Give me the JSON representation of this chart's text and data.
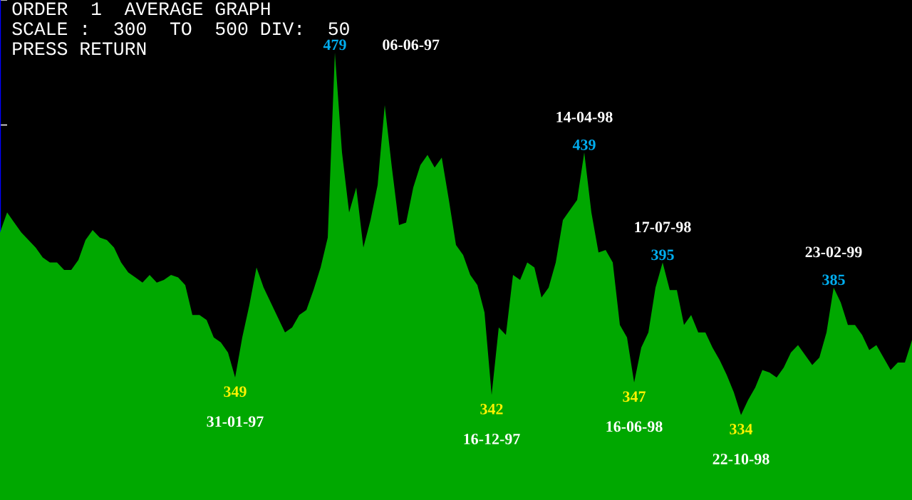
{
  "chart_data": {
    "type": "area",
    "title": "ORDER  1  AVERAGE GRAPH",
    "subtitle": "SCALE :  300  TO  500 DIV:  50",
    "annotations": [
      "PRESS RETURN",
      "31-01-97",
      "06-06-97",
      "16-12-97",
      "14-04-98",
      "16-06-98",
      "17-07-98",
      "22-10-98",
      "23-02-99"
    ],
    "categories": [
      null,
      null,
      null,
      null,
      null,
      null,
      null,
      null,
      null,
      null,
      null,
      null,
      null,
      null,
      null,
      null,
      null,
      null,
      null,
      null,
      null,
      null,
      null,
      null,
      null,
      null,
      null,
      null,
      null,
      null,
      null,
      null,
      null,
      null,
      null,
      null,
      null,
      null,
      null,
      null,
      null,
      null,
      null,
      null,
      null,
      null,
      null,
      null,
      null,
      null,
      null,
      null,
      null,
      null,
      null,
      null,
      null,
      null,
      null,
      null,
      null,
      null,
      null,
      null,
      null,
      null,
      null,
      null,
      null,
      null,
      null,
      null,
      null,
      null,
      null,
      null,
      null,
      null,
      null,
      null,
      null,
      null,
      null,
      null,
      null,
      null,
      null,
      null,
      null,
      null,
      null,
      null,
      null,
      null,
      null,
      null,
      null,
      null,
      null,
      null,
      null,
      null,
      null,
      null,
      null,
      null,
      null,
      null,
      null,
      null,
      null,
      null,
      null,
      null,
      null,
      null,
      null,
      null,
      null,
      null,
      null,
      null,
      null,
      null,
      null,
      null,
      null,
      null,
      null
    ],
    "values": [
      407,
      415,
      411,
      407,
      404,
      401,
      397,
      395,
      395,
      392,
      392,
      396,
      404,
      408,
      405,
      404,
      401,
      395,
      391,
      389,
      387,
      390,
      387,
      388,
      390,
      389,
      386,
      374,
      374,
      372,
      365,
      363,
      359,
      349,
      365,
      378,
      393,
      385,
      379,
      373,
      367,
      369,
      374,
      376,
      384,
      393,
      405,
      479,
      439,
      415,
      425,
      401,
      412,
      426,
      458,
      433,
      410,
      411,
      425,
      434,
      438,
      433,
      437,
      420,
      402,
      398,
      390,
      386,
      375,
      342,
      369,
      366,
      390,
      388,
      395,
      393,
      381,
      385,
      395,
      412,
      416,
      420,
      439,
      415,
      399,
      400,
      395,
      370,
      365,
      347,
      361,
      367,
      385,
      395,
      384,
      384,
      370,
      374,
      367,
      367,
      361,
      356,
      350,
      343,
      334,
      340,
      345,
      352,
      351,
      349,
      353,
      359,
      362,
      358,
      354,
      357,
      367,
      385,
      379,
      370,
      370,
      366,
      360,
      362,
      357,
      352,
      355,
      355,
      364
    ],
    "value_labels": [
      null,
      null,
      null,
      null,
      null,
      null,
      null,
      null,
      null,
      null,
      null,
      null,
      null,
      null,
      null,
      null,
      null,
      null,
      null,
      null,
      null,
      null,
      null,
      null,
      null,
      null,
      null,
      null,
      null,
      null,
      null,
      null,
      null,
      "349",
      null,
      null,
      null,
      null,
      null,
      null,
      null,
      null,
      null,
      null,
      null,
      null,
      null,
      "479",
      null,
      null,
      null,
      null,
      null,
      null,
      null,
      null,
      null,
      null,
      null,
      null,
      null,
      null,
      null,
      null,
      null,
      null,
      null,
      null,
      null,
      "342",
      null,
      null,
      null,
      null,
      null,
      null,
      null,
      null,
      null,
      null,
      null,
      null,
      "439",
      null,
      null,
      null,
      null,
      null,
      null,
      "347",
      null,
      null,
      null,
      "395",
      null,
      null,
      null,
      null,
      null,
      null,
      null,
      null,
      null,
      null,
      "334",
      null,
      null,
      null,
      null,
      null,
      null,
      null,
      null,
      null,
      null,
      null,
      null,
      "385",
      null,
      null,
      null,
      null,
      null,
      null,
      null,
      null,
      null,
      null,
      null
    ],
    "color": "#00a800",
    "ylim": [
      300,
      500
    ],
    "yticks": [
      {
        "value": 300,
        "label": null
      },
      {
        "value": 350,
        "label": null
      },
      {
        "value": 400,
        "label": null
      },
      {
        "value": 450,
        "label": null
      },
      {
        "value": 500,
        "label": null
      }
    ],
    "grid": false
  }
}
